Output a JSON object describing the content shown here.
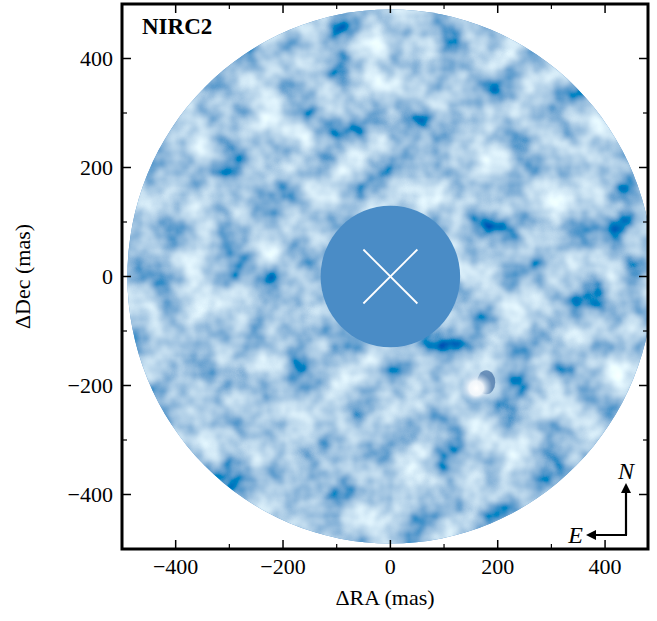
{
  "chart_data": {
    "type": "image",
    "title": "NIRC2",
    "x_label": "ΔRA (mas)",
    "y_label": "ΔDec (mas)",
    "xlim": [
      -500,
      480
    ],
    "ylim": [
      -500,
      500
    ],
    "xticks": [
      {
        "value": -400,
        "label": "−400"
      },
      {
        "value": -200,
        "label": "−200"
      },
      0,
      200,
      400
    ],
    "yticks": [
      {
        "value": -400,
        "label": "−400"
      },
      {
        "value": -200,
        "label": "−200"
      },
      0,
      200,
      400
    ],
    "field_radius": 490,
    "mask_radius": 130,
    "star": {
      "x": 0,
      "y": 0
    },
    "sources": [
      {
        "x": 160,
        "y": -205
      }
    ],
    "compass": {
      "north": "N",
      "east": "E"
    },
    "color": "#4a8cc6"
  }
}
